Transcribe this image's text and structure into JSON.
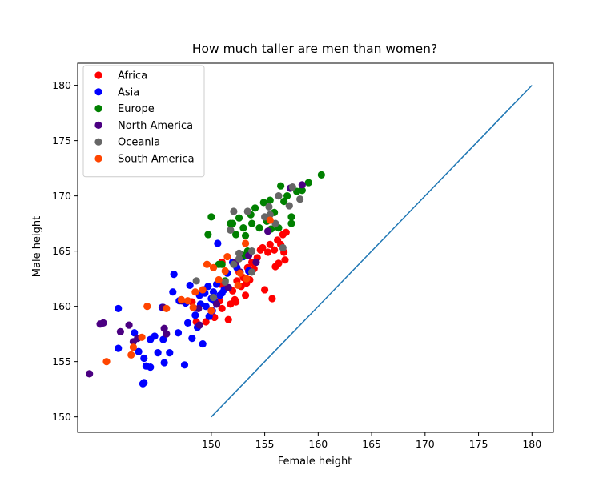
{
  "chart_data": {
    "type": "scatter",
    "title": "How much taller are men than women?",
    "xlabel": "Female height",
    "ylabel": "Male height",
    "xlim": [
      137.5,
      182
    ],
    "ylim": [
      148.6,
      182
    ],
    "xticks": [
      150,
      155,
      160,
      165,
      170,
      175,
      180
    ],
    "yticks": [
      150,
      155,
      160,
      165,
      170,
      175,
      180
    ],
    "grid": false,
    "legend": "top-left",
    "reference_line": {
      "x": [
        150,
        180
      ],
      "y": [
        150,
        180
      ],
      "color": "#1f77b4"
    },
    "series": [
      {
        "name": "Africa",
        "color": "#ff0000",
        "points": [
          [
            148.2,
            160.4
          ],
          [
            148.6,
            158.6
          ],
          [
            149.5,
            158.6
          ],
          [
            150.3,
            159.0
          ],
          [
            150.8,
            160.5
          ],
          [
            151.0,
            159.8
          ],
          [
            151.3,
            161.7
          ],
          [
            151.6,
            158.8
          ],
          [
            151.8,
            160.2
          ],
          [
            152.0,
            161.4
          ],
          [
            152.2,
            160.6
          ],
          [
            152.4,
            162.3
          ],
          [
            152.6,
            163.1
          ],
          [
            152.8,
            161.8
          ],
          [
            153.0,
            162.6
          ],
          [
            153.2,
            161.0
          ],
          [
            153.4,
            163.5
          ],
          [
            153.6,
            162.4
          ],
          [
            153.8,
            164.0
          ],
          [
            154.0,
            163.4
          ],
          [
            154.3,
            164.4
          ],
          [
            154.6,
            165.1
          ],
          [
            154.8,
            165.3
          ],
          [
            155.0,
            161.5
          ],
          [
            155.3,
            164.9
          ],
          [
            155.5,
            165.6
          ],
          [
            155.7,
            160.7
          ],
          [
            155.9,
            165.1
          ],
          [
            156.0,
            163.6
          ],
          [
            156.2,
            166.0
          ],
          [
            156.3,
            163.9
          ],
          [
            156.5,
            165.6
          ],
          [
            156.7,
            166.5
          ],
          [
            156.8,
            164.9
          ],
          [
            156.9,
            164.2
          ],
          [
            157.0,
            166.7
          ],
          [
            151.0,
            164.0
          ],
          [
            150.9,
            162.0
          ],
          [
            152.3,
            160.4
          ],
          [
            153.3,
            162.1
          ]
        ]
      },
      {
        "name": "Asia",
        "color": "#0000ff",
        "points": [
          [
            141.3,
            159.8
          ],
          [
            141.3,
            156.2
          ],
          [
            142.8,
            157.6
          ],
          [
            143.2,
            155.9
          ],
          [
            143.6,
            153.0
          ],
          [
            143.7,
            153.1
          ],
          [
            143.7,
            155.3
          ],
          [
            143.9,
            154.6
          ],
          [
            144.3,
            157.0
          ],
          [
            144.3,
            154.5
          ],
          [
            144.7,
            157.3
          ],
          [
            145.0,
            155.8
          ],
          [
            145.4,
            159.9
          ],
          [
            145.5,
            157.0
          ],
          [
            145.6,
            154.9
          ],
          [
            146.1,
            155.8
          ],
          [
            146.4,
            161.3
          ],
          [
            146.5,
            162.9
          ],
          [
            146.9,
            157.6
          ],
          [
            147.0,
            160.5
          ],
          [
            147.5,
            154.7
          ],
          [
            147.6,
            160.3
          ],
          [
            147.8,
            158.5
          ],
          [
            148.0,
            161.9
          ],
          [
            148.2,
            157.1
          ],
          [
            148.5,
            159.2
          ],
          [
            148.7,
            158.1
          ],
          [
            148.9,
            161.0
          ],
          [
            149.0,
            160.2
          ],
          [
            149.2,
            156.6
          ],
          [
            149.3,
            161.5
          ],
          [
            149.5,
            160.0
          ],
          [
            149.7,
            161.8
          ],
          [
            149.8,
            159.1
          ],
          [
            150.0,
            160.7
          ],
          [
            150.2,
            161.3
          ],
          [
            150.3,
            160.5
          ],
          [
            150.5,
            162.0
          ],
          [
            150.6,
            165.7
          ],
          [
            150.8,
            161.0
          ],
          [
            151.0,
            161.2
          ],
          [
            151.5,
            163.0
          ],
          [
            152.0,
            164.0
          ],
          [
            152.4,
            163.5
          ],
          [
            153.0,
            164.5
          ],
          [
            153.5,
            163.2
          ],
          [
            149.4,
            161.2
          ],
          [
            150.1,
            159.6
          ],
          [
            151.2,
            161.5
          ]
        ]
      },
      {
        "name": "Europe",
        "color": "#008000",
        "points": [
          [
            149.7,
            166.5
          ],
          [
            150.0,
            168.1
          ],
          [
            150.7,
            163.8
          ],
          [
            151.0,
            163.8
          ],
          [
            151.3,
            162.3
          ],
          [
            151.8,
            167.5
          ],
          [
            152.0,
            167.5
          ],
          [
            152.3,
            166.5
          ],
          [
            152.6,
            168.0
          ],
          [
            153.0,
            167.1
          ],
          [
            153.2,
            166.4
          ],
          [
            153.4,
            165.0
          ],
          [
            153.7,
            168.3
          ],
          [
            153.8,
            167.5
          ],
          [
            154.1,
            168.9
          ],
          [
            154.5,
            167.1
          ],
          [
            154.9,
            169.4
          ],
          [
            155.2,
            167.7
          ],
          [
            155.5,
            169.6
          ],
          [
            155.6,
            167.0
          ],
          [
            155.9,
            168.5
          ],
          [
            156.3,
            167.1
          ],
          [
            156.5,
            170.9
          ],
          [
            156.8,
            169.5
          ],
          [
            157.1,
            170.0
          ],
          [
            157.5,
            167.5
          ],
          [
            157.5,
            168.1
          ],
          [
            158.0,
            170.4
          ],
          [
            158.5,
            170.5
          ],
          [
            159.1,
            171.2
          ],
          [
            160.3,
            171.9
          ],
          [
            152.8,
            164.7
          ],
          [
            153.2,
            164.6
          ]
        ]
      },
      {
        "name": "North America",
        "color": "#4b0082",
        "points": [
          [
            138.6,
            153.9
          ],
          [
            139.6,
            158.4
          ],
          [
            139.9,
            158.5
          ],
          [
            141.5,
            157.7
          ],
          [
            142.3,
            158.3
          ],
          [
            142.7,
            156.8
          ],
          [
            143.1,
            157.1
          ],
          [
            145.5,
            159.9
          ],
          [
            145.6,
            158.0
          ],
          [
            145.8,
            157.5
          ],
          [
            147.2,
            160.5
          ],
          [
            148.8,
            159.8
          ],
          [
            150.5,
            160.2
          ],
          [
            151.6,
            161.7
          ],
          [
            152.3,
            164.0
          ],
          [
            152.7,
            163.1
          ],
          [
            153.5,
            164.6
          ],
          [
            154.2,
            164.0
          ],
          [
            155.3,
            166.8
          ],
          [
            157.4,
            170.7
          ],
          [
            158.5,
            171.0
          ],
          [
            148.9,
            158.3
          ]
        ]
      },
      {
        "name": "Oceania",
        "color": "#666666",
        "points": [
          [
            151.8,
            166.9
          ],
          [
            152.1,
            168.6
          ],
          [
            152.6,
            164.8
          ],
          [
            153.4,
            168.6
          ],
          [
            153.8,
            165.0
          ],
          [
            155.0,
            168.1
          ],
          [
            155.4,
            169.0
          ],
          [
            155.5,
            168.3
          ],
          [
            156.0,
            167.5
          ],
          [
            156.3,
            170.0
          ],
          [
            156.7,
            165.3
          ],
          [
            157.3,
            169.1
          ],
          [
            157.6,
            170.8
          ],
          [
            158.3,
            169.7
          ],
          [
            150.2,
            160.8
          ],
          [
            151.3,
            162.2
          ],
          [
            152.1,
            163.8
          ],
          [
            152.6,
            164.3
          ],
          [
            153.8,
            163.1
          ],
          [
            148.6,
            162.3
          ]
        ]
      },
      {
        "name": "South America",
        "color": "#ff4500",
        "points": [
          [
            140.2,
            155.0
          ],
          [
            142.5,
            155.6
          ],
          [
            142.7,
            156.3
          ],
          [
            143.5,
            157.2
          ],
          [
            144.0,
            160.0
          ],
          [
            145.8,
            159.8
          ],
          [
            147.2,
            160.6
          ],
          [
            147.8,
            160.5
          ],
          [
            148.3,
            159.9
          ],
          [
            149.2,
            161.5
          ],
          [
            149.6,
            163.8
          ],
          [
            150.0,
            159.6
          ],
          [
            150.2,
            163.5
          ],
          [
            150.7,
            162.4
          ],
          [
            151.3,
            163.2
          ],
          [
            151.5,
            164.5
          ],
          [
            152.7,
            163.0
          ],
          [
            153.3,
            162.5
          ],
          [
            153.2,
            165.7
          ],
          [
            155.5,
            167.8
          ],
          [
            148.5,
            161.3
          ],
          [
            152.5,
            161.9
          ]
        ]
      }
    ]
  }
}
